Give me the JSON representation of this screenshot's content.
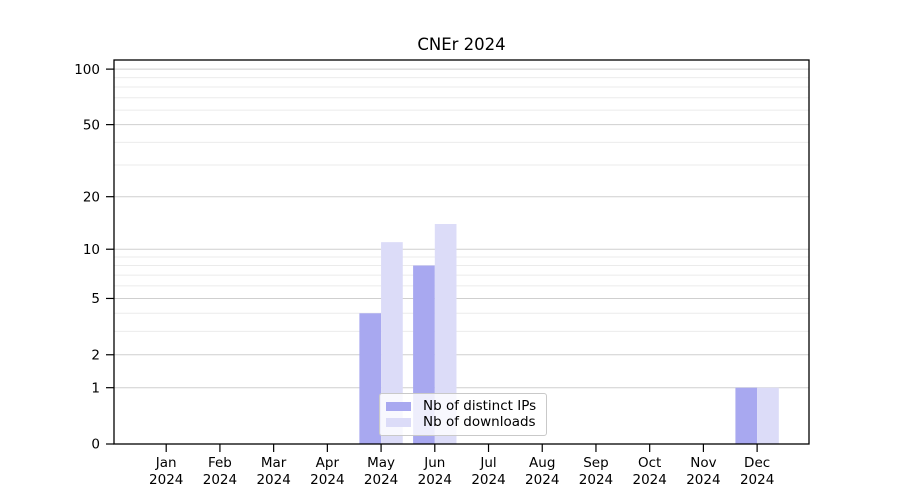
{
  "colors": {
    "background": "#ffffff",
    "axis": "#000000",
    "grid_major": "#cfcfcf",
    "grid_minor": "#ebebeb",
    "legend_border": "#c9c9c9",
    "bar_distinct_ips": "#a8a8f0",
    "bar_downloads": "#dcdcf8"
  },
  "chart_data": {
    "type": "bar",
    "title": "CNEr 2024",
    "categories": [
      "Jan 2024",
      "Feb 2024",
      "Mar 2024",
      "Apr 2024",
      "May 2024",
      "Jun 2024",
      "Jul 2024",
      "Aug 2024",
      "Sep 2024",
      "Oct 2024",
      "Nov 2024",
      "Dec 2024"
    ],
    "series": [
      {
        "name": "Nb of distinct IPs",
        "color": "#a8a8f0",
        "values": [
          0,
          0,
          0,
          0,
          4,
          8,
          0,
          0,
          0,
          0,
          0,
          1
        ]
      },
      {
        "name": "Nb of downloads",
        "color": "#dcdcf8",
        "values": [
          0,
          0,
          0,
          0,
          11,
          14,
          0,
          0,
          0,
          0,
          0,
          1
        ]
      }
    ],
    "y_scale": "log1p",
    "ylim": [
      0,
      112
    ],
    "y_tick_labels": [
      0,
      1,
      2,
      5,
      10,
      20,
      50,
      100
    ],
    "y_minor_gridlines": [
      3,
      4,
      6,
      7,
      8,
      9,
      30,
      40,
      60,
      70,
      80,
      90
    ],
    "grid": "horizontal, major and minor",
    "legend": {
      "position": "lower center"
    }
  }
}
